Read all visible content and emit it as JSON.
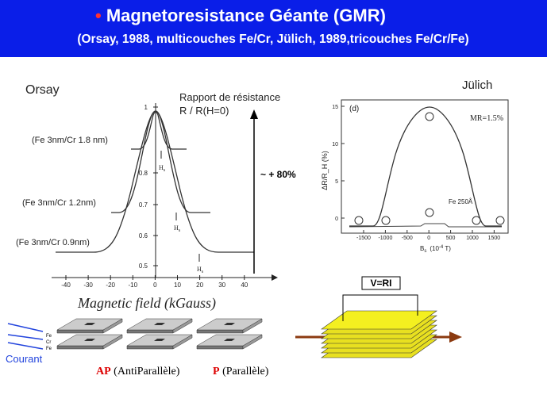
{
  "header": {
    "bullet": "•",
    "title": "Magnetoresistance Géante (GMR)",
    "subtitle": "(Orsay, 1988, multicouches Fe/Cr, Jülich, 1989,tricouches Fe/Cr/Fe)"
  },
  "orsay": {
    "label": "Orsay",
    "y_title": [
      "Rapport de résistance",
      "R / R(H=0)"
    ],
    "yticks": [
      "1",
      "0.8",
      "0.7",
      "0.6",
      "0.5"
    ],
    "xticks": [
      "-40",
      "-30",
      "-20",
      "-10",
      "0",
      "10",
      "20",
      "30",
      "40"
    ],
    "curves": [
      "(Fe 3nm/Cr 1.8 nm)",
      "(Fe 3nm/Cr 1.2nm)",
      "(Fe 3nm/Cr 0.9nm)"
    ],
    "hs": {
      "main": "H",
      "sub": "s"
    },
    "ratio": "~ + 80%",
    "x_title": "Magnetic field (kGauss)"
  },
  "julich": {
    "label": "Jülich",
    "panel": "(d)",
    "mr": "MR=1.5%",
    "sample": "Fe 250Å",
    "yticks": [
      "15",
      "10",
      "5",
      "0"
    ],
    "xticks": [
      "-1500",
      "-1000",
      "-500",
      "0",
      "500",
      "1000",
      "1500"
    ],
    "x_title": {
      "main": "B",
      "sub": "s",
      "unit": "(10",
      "exp": "-4",
      "unit_end": " T)"
    },
    "y_title": "ΔR/R_H (%)"
  },
  "bottom": {
    "formula": "V=RI",
    "layers": [
      "Fe",
      "Cr",
      "Fe"
    ],
    "current": "Courant",
    "ap": "AP",
    "ap_text": "(AntiParallèle)",
    "p": "P",
    "p_text": "(Parallèle)"
  }
}
